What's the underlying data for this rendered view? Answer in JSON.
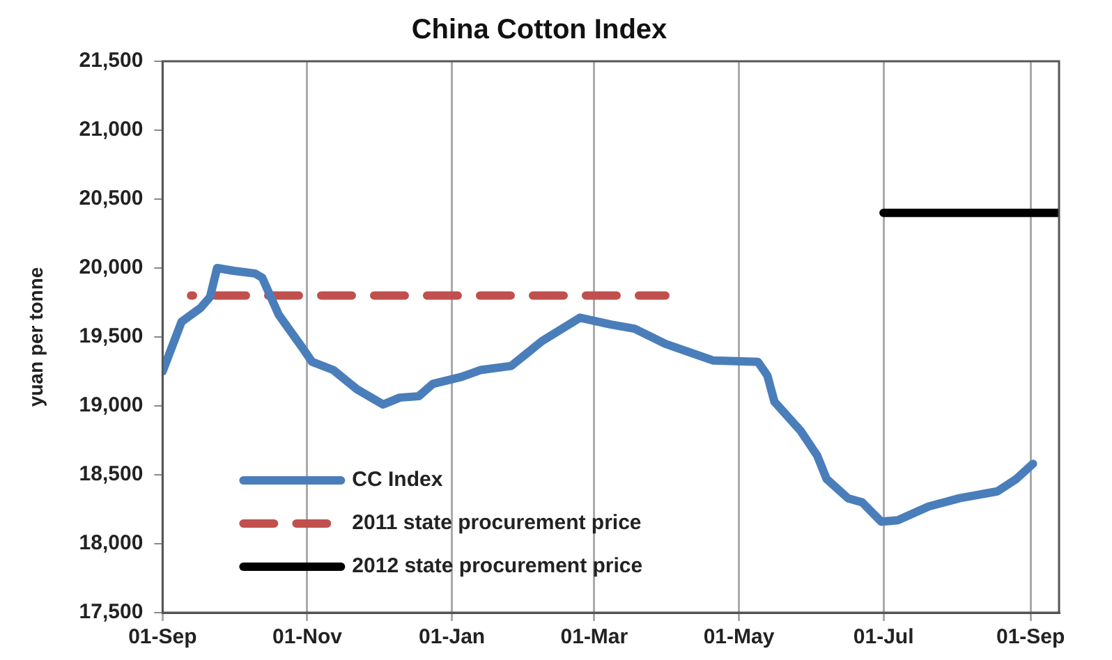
{
  "chart_data": {
    "type": "line",
    "title": "China Cotton Index",
    "ylabel": "yuan per tonne",
    "xlim": [
      "2011-09-01",
      "2012-09-13"
    ],
    "xticks": [
      {
        "value": "2011-09-01",
        "label": "01-Sep"
      },
      {
        "value": "2011-11-01",
        "label": "01-Nov"
      },
      {
        "value": "2012-01-01",
        "label": "01-Jan"
      },
      {
        "value": "2012-03-01",
        "label": "01-Mar"
      },
      {
        "value": "2012-05-01",
        "label": "01-May"
      },
      {
        "value": "2012-07-01",
        "label": "01-Jul"
      },
      {
        "value": "2012-09-01",
        "label": "01-Sep"
      }
    ],
    "ylim": [
      17500,
      21500
    ],
    "yticks": [
      {
        "value": 17500,
        "label": "17,500"
      },
      {
        "value": 18000,
        "label": "18,000"
      },
      {
        "value": 18500,
        "label": "18,500"
      },
      {
        "value": 19000,
        "label": "19,000"
      },
      {
        "value": 19500,
        "label": "19,500"
      },
      {
        "value": 20000,
        "label": "20,000"
      },
      {
        "value": 20500,
        "label": "20,500"
      },
      {
        "value": 21000,
        "label": "21,000"
      },
      {
        "value": 21500,
        "label": "21,500"
      }
    ],
    "grid": "x",
    "legend": "bottom left",
    "marker": "none",
    "series": [
      {
        "name": "CC Index",
        "color": "#4a7ebb",
        "line_style": "solid",
        "x": [
          "2011-09-01",
          "2011-09-09",
          "2011-09-17",
          "2011-09-21",
          "2011-09-24",
          "2011-10-01",
          "2011-10-10",
          "2011-10-13",
          "2011-10-20",
          "2011-10-30",
          "2011-11-03",
          "2011-11-12",
          "2011-11-22",
          "2011-12-03",
          "2011-12-10",
          "2011-12-18",
          "2011-12-24",
          "2012-01-05",
          "2012-01-13",
          "2012-01-26",
          "2012-02-08",
          "2012-02-24",
          "2012-03-08",
          "2012-03-18",
          "2012-03-31",
          "2012-04-20",
          "2012-05-09",
          "2012-05-13",
          "2012-05-16",
          "2012-05-27",
          "2012-06-03",
          "2012-06-07",
          "2012-06-16",
          "2012-06-22",
          "2012-06-30",
          "2012-07-07",
          "2012-07-20",
          "2012-08-02",
          "2012-08-18",
          "2012-08-26",
          "2012-09-02"
        ],
        "values": [
          19250,
          19610,
          19710,
          19790,
          20000,
          19980,
          19960,
          19930,
          19660,
          19420,
          19320,
          19260,
          19120,
          19010,
          19060,
          19070,
          19160,
          19210,
          19260,
          19290,
          19470,
          19640,
          19590,
          19560,
          19450,
          19330,
          19320,
          19220,
          19030,
          18820,
          18640,
          18470,
          18330,
          18300,
          18160,
          18170,
          18270,
          18330,
          18380,
          18470,
          18580
        ]
      },
      {
        "name": "2011 state procurement price",
        "color": "#c0504d",
        "line_style": "dashed",
        "x": [
          "2011-09-13",
          "2012-03-31"
        ],
        "values": [
          19800,
          19800
        ]
      },
      {
        "name": "2012 state procurement price",
        "color": "#000000",
        "line_style": "solid",
        "x": [
          "2012-07-01",
          "2012-09-13"
        ],
        "values": [
          20400,
          20400
        ]
      }
    ]
  }
}
